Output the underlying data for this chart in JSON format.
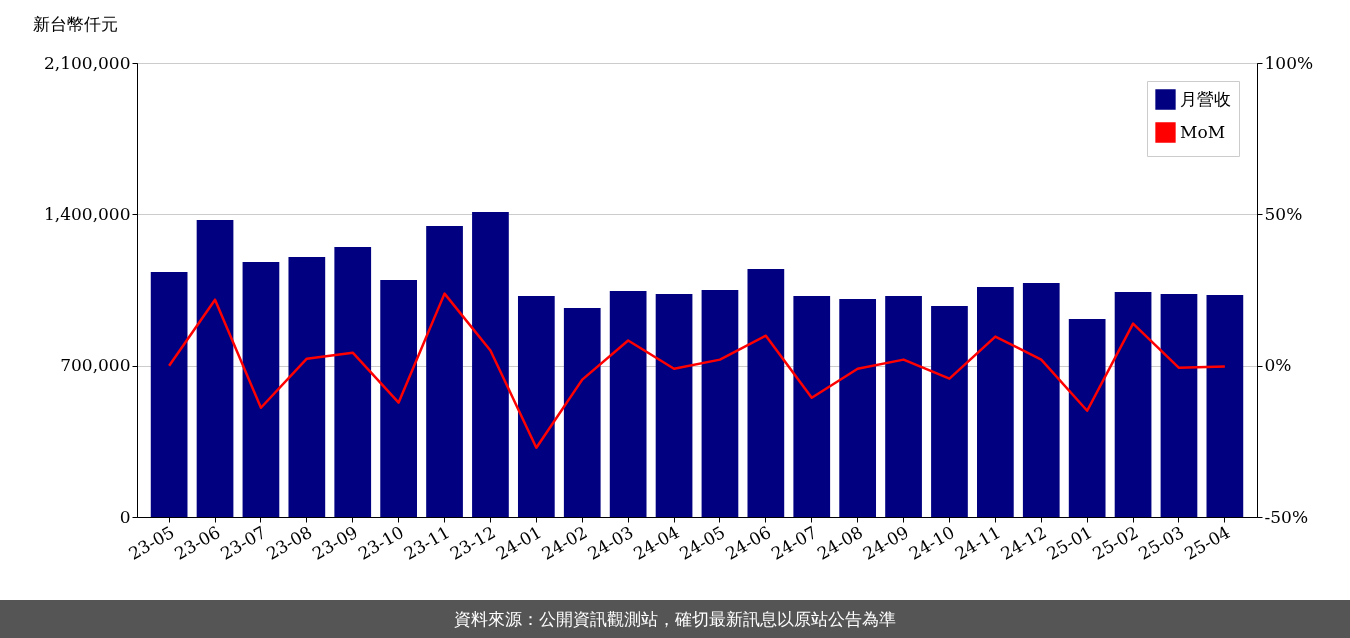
{
  "chart_data": {
    "type": "bar",
    "ylabel": "新台幣仟元",
    "categories": [
      "23-05",
      "23-06",
      "23-07",
      "23-08",
      "23-09",
      "23-10",
      "23-11",
      "23-12",
      "24-01",
      "24-02",
      "24-03",
      "24-04",
      "24-05",
      "24-06",
      "24-07",
      "24-08",
      "24-09",
      "24-10",
      "24-11",
      "24-12",
      "25-01",
      "25-02",
      "25-03",
      "25-04"
    ],
    "series": [
      {
        "name": "月營收",
        "color": "#000080",
        "values": [
          1133000,
          1374000,
          1180000,
          1203000,
          1249000,
          1096000,
          1346000,
          1411000,
          1022000,
          967000,
          1045000,
          1032000,
          1050000,
          1147000,
          1022000,
          1008000,
          1022000,
          976000,
          1064000,
          1082000,
          916000,
          1041000,
          1032000,
          1027000
        ]
      },
      {
        "name": "MoM",
        "type": "line",
        "axis": "y2",
        "color": "#ff0000",
        "values": [
          0,
          21.8,
          -13.9,
          2.3,
          4.3,
          -12.2,
          23.8,
          5.0,
          -27.1,
          -4.6,
          8.3,
          -1.0,
          2.0,
          9.9,
          -10.6,
          -1.0,
          2.0,
          -4.3,
          9.6,
          2.0,
          -14.9,
          13.9,
          -0.7,
          -0.3
        ]
      }
    ],
    "ylim": [
      0,
      2100000
    ],
    "yticks": [
      {
        "value": 0,
        "label": "0"
      },
      {
        "value": 700000,
        "label": "700,000"
      },
      {
        "value": 1400000,
        "label": "1,400,000"
      },
      {
        "value": 2100000,
        "label": "2,100,000"
      }
    ],
    "y2lim": [
      -50,
      100
    ],
    "y2ticks": [
      {
        "value": -50,
        "label": "-50%"
      },
      {
        "value": 0,
        "label": "0%"
      },
      {
        "value": 50,
        "label": "50%"
      },
      {
        "value": 100,
        "label": "100%"
      }
    ],
    "grid": "y",
    "legend": "top right",
    "annotations": [
      "資料來源：公開資訊觀測站，確切最新訊息以原站公告為準"
    ]
  }
}
